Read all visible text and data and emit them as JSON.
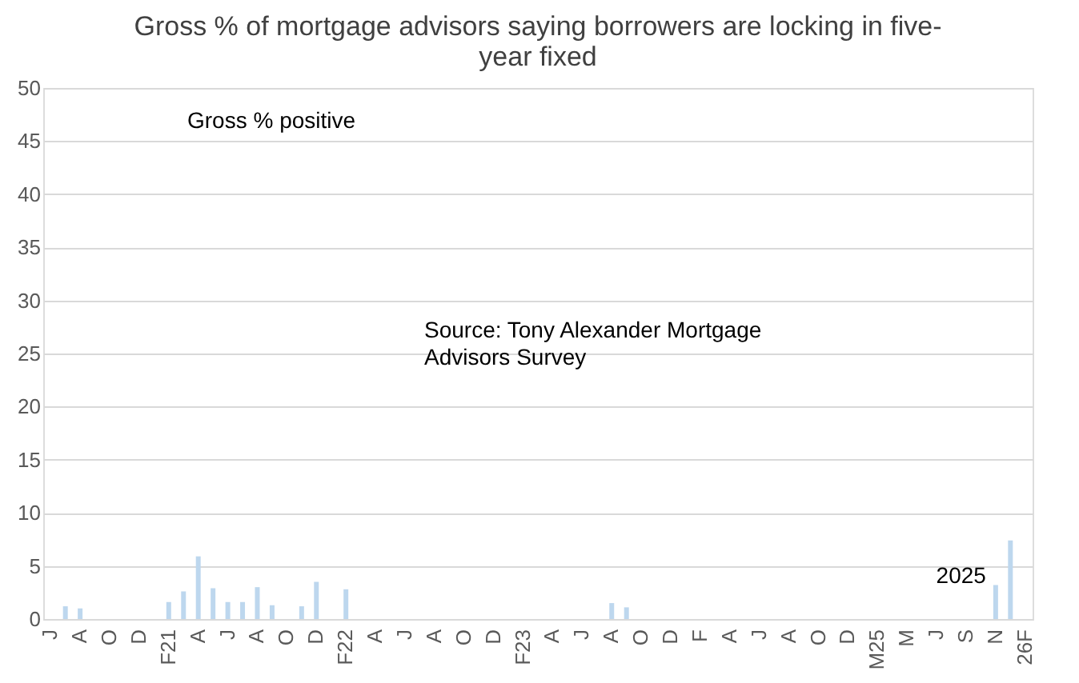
{
  "chart_data": {
    "type": "bar",
    "title": "Gross % of mortgage advisors saying borrowers are locking in five-year fixed",
    "categories": [
      "J",
      null,
      "A",
      null,
      "O",
      null,
      "D",
      null,
      "F21",
      null,
      "A",
      null,
      "J",
      null,
      "A",
      null,
      "O",
      null,
      "D",
      null,
      "F22",
      null,
      "A",
      null,
      "J",
      null,
      "A",
      null,
      "O",
      null,
      "D",
      null,
      "F23",
      null,
      "A",
      null,
      "J",
      null,
      "A",
      null,
      "O",
      null,
      "D",
      null,
      "F",
      null,
      "A",
      null,
      "J",
      null,
      "A",
      null,
      "O",
      null,
      "D",
      null,
      "M25",
      null,
      "M",
      null,
      "J",
      null,
      "S",
      null,
      "N",
      null,
      "26F"
    ],
    "values": [
      null,
      1.2,
      1.0,
      null,
      null,
      null,
      null,
      null,
      1.6,
      2.6,
      5.9,
      2.9,
      1.6,
      1.6,
      3.0,
      1.3,
      null,
      1.2,
      3.5,
      null,
      2.8,
      null,
      null,
      null,
      null,
      null,
      null,
      null,
      null,
      null,
      null,
      null,
      null,
      null,
      null,
      null,
      null,
      null,
      1.5,
      1.1,
      null,
      null,
      null,
      null,
      null,
      null,
      null,
      null,
      null,
      null,
      null,
      null,
      null,
      null,
      null,
      null,
      null,
      null,
      null,
      null,
      null,
      null,
      null,
      null,
      3.2,
      7.4,
      null
    ],
    "color": "#bdd7ee",
    "ylim": [
      0,
      50
    ],
    "yticks": [
      0,
      5,
      10,
      15,
      20,
      25,
      30,
      35,
      40,
      45,
      50
    ],
    "grid": "y",
    "annotations": [
      "Gross % positive",
      "Source: Tony Alexander Mortgage Advisors Survey",
      {
        "text": "2025",
        "x": "N",
        "y": 4
      }
    ]
  }
}
